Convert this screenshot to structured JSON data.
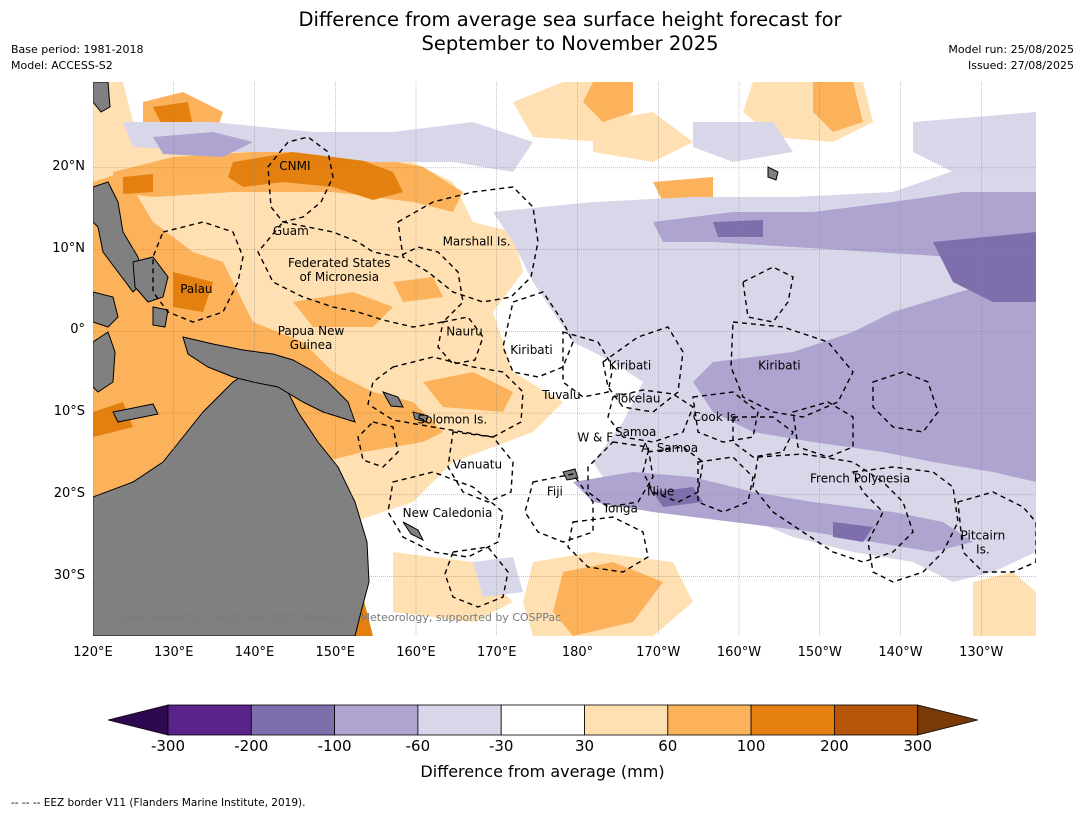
{
  "header": {
    "title_line1": "Difference from average sea surface height forecast for",
    "title_line2": "September to November 2025",
    "base_period": "Base period: 1981-2018",
    "model": "Model: ACCESS-S2",
    "model_run": "Model run: 25/08/2025",
    "issued": "Issued: 27/08/2025"
  },
  "map": {
    "lon_labels": [
      "120°E",
      "130°E",
      "140°E",
      "150°E",
      "160°E",
      "170°E",
      "180°",
      "170°W",
      "160°W",
      "150°W",
      "140°W",
      "130°W"
    ],
    "lat_labels": [
      "20°N",
      "10°N",
      "0°",
      "10°S",
      "20°S",
      "30°S"
    ],
    "copyright": "© Commonwealth of Australia 2025, Bureau of Meteorology, supported by COSPPac",
    "regions": [
      {
        "lines": [
          "CNMI"
        ],
        "lon": 145,
        "lat": 20.2
      },
      {
        "lines": [
          "Guam"
        ],
        "lon": 144.5,
        "lat": 12.3
      },
      {
        "lines": [
          "Marshall Is."
        ],
        "lon": 167.5,
        "lat": 11
      },
      {
        "lines": [
          "Federated States",
          "of Micronesia"
        ],
        "lon": 150.5,
        "lat": 7.5
      },
      {
        "lines": [
          "Palau"
        ],
        "lon": 132.8,
        "lat": 5.2
      },
      {
        "lines": [
          "Nauru"
        ],
        "lon": 166,
        "lat": 0
      },
      {
        "lines": [
          "Papua New",
          "Guinea"
        ],
        "lon": 147,
        "lat": -0.8
      },
      {
        "lines": [
          "Kiribati"
        ],
        "lon": 174.3,
        "lat": -2.3
      },
      {
        "lines": [
          "Kiribati"
        ],
        "lon": -173.5,
        "lat": -4.2
      },
      {
        "lines": [
          "Kiribati"
        ],
        "lon": -155,
        "lat": -4.2
      },
      {
        "lines": [
          "Tuvalu"
        ],
        "lon": 178,
        "lat": -7.8
      },
      {
        "lines": [
          "Tokelau"
        ],
        "lon": -172.5,
        "lat": -8.2
      },
      {
        "lines": [
          "Solomon Is."
        ],
        "lon": 164.5,
        "lat": -10.8
      },
      {
        "lines": [
          "Cook Is."
        ],
        "lon": -162.8,
        "lat": -10.5
      },
      {
        "lines": [
          "Samoa"
        ],
        "lon": -172.8,
        "lat": -12.3
      },
      {
        "lines": [
          "W & F"
        ],
        "lon": -177.8,
        "lat": -13
      },
      {
        "lines": [
          "A. Samoa"
        ],
        "lon": -168.6,
        "lat": -14.3
      },
      {
        "lines": [
          "Vanuatu"
        ],
        "lon": 167.6,
        "lat": -16.3
      },
      {
        "lines": [
          "French Polynesia"
        ],
        "lon": -145,
        "lat": -18
      },
      {
        "lines": [
          "Fiji"
        ],
        "lon": 177.2,
        "lat": -19.6
      },
      {
        "lines": [
          "Niue"
        ],
        "lon": -169.7,
        "lat": -19.6
      },
      {
        "lines": [
          "Tonga"
        ],
        "lon": -174.7,
        "lat": -21.7
      },
      {
        "lines": [
          "New Caledonia"
        ],
        "lon": 163.9,
        "lat": -22.2
      },
      {
        "lines": [
          "Pitcairn",
          "Is."
        ],
        "lon": -129.8,
        "lat": -25.8
      }
    ]
  },
  "colorbar": {
    "title": "Difference from average (mm)",
    "ticks": [
      "-300",
      "-200",
      "-100",
      "-60",
      "-30",
      "30",
      "60",
      "100",
      "200",
      "300"
    ],
    "colors": [
      "#2d0a4d",
      "#5b2389",
      "#7e6fac",
      "#aea4cf",
      "#d8d7ea",
      "#ffffff",
      "#ffe0b2",
      "#fbb25b",
      "#e3800f",
      "#b45508",
      "#7a3a08"
    ]
  },
  "footnote": "-- -- -- EEZ border V11 (Flanders Marine Institute, 2019)."
}
